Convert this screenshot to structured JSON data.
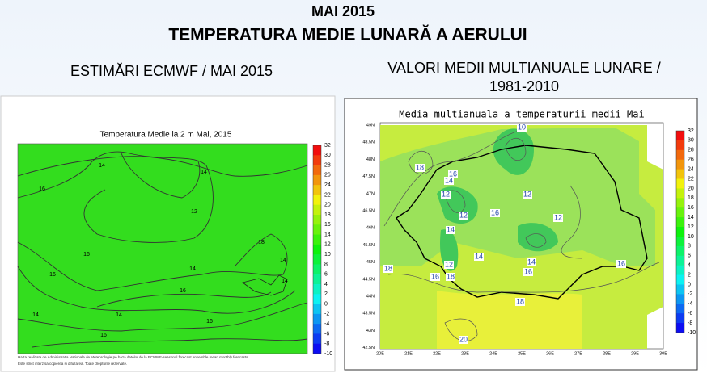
{
  "header": {
    "title": "MAI 2015",
    "subtitle": "TEMPERATURA MEDIE LUNARĂ A AERULUI"
  },
  "left": {
    "heading": "ESTIMĂRI ECMWF / MAI 2015",
    "map_title": "Temperatura Medie la 2 m Mai, 2015",
    "colorbar": [
      32,
      30,
      28,
      26,
      24,
      22,
      20,
      18,
      16,
      14,
      12,
      10,
      8,
      6,
      4,
      2,
      0,
      -2,
      -4,
      -6,
      -8,
      -10
    ],
    "contour_labels": [
      "14",
      "16",
      "14",
      "12",
      "16",
      "18",
      "16",
      "14",
      "16",
      "16",
      "14",
      "14",
      "14",
      "14",
      "16"
    ],
    "note": [
      "Harta realizata de Administratia Nationala de Meteorologie pe baza datelor de la ECMWF-seasonal forecast ensemble mean monthly forecasts.",
      "Este strict interzisa copierea si difuzarea. Toate drepturile rezervate."
    ]
  },
  "right": {
    "heading": [
      "VALORI MEDII MULTIANUALE LUNARE /",
      "1981-2010"
    ],
    "map_title": "Media multianuala a temperaturii medii Mai",
    "colorbar": [
      32,
      30,
      28,
      26,
      24,
      22,
      20,
      18,
      16,
      14,
      12,
      10,
      8,
      6,
      4,
      2,
      0,
      -2,
      -4,
      -6,
      -8,
      -10
    ],
    "lat_labels": [
      "49N",
      "48.5N",
      "48N",
      "47.5N",
      "47N",
      "46.5N",
      "46N",
      "45.5N",
      "45N",
      "44.5N",
      "44N",
      "43.5N",
      "43N",
      "42.5N"
    ],
    "lon_labels": [
      "20E",
      "21E",
      "22E",
      "23E",
      "24E",
      "25E",
      "26E",
      "27E",
      "28E",
      "29E",
      "30E"
    ],
    "contour_labels": [
      "10",
      "18",
      "16",
      "14",
      "12",
      "12",
      "16",
      "12",
      "14",
      "12",
      "14",
      "18",
      "12",
      "16",
      "18",
      "14",
      "16",
      "16",
      "18",
      "20"
    ]
  }
}
